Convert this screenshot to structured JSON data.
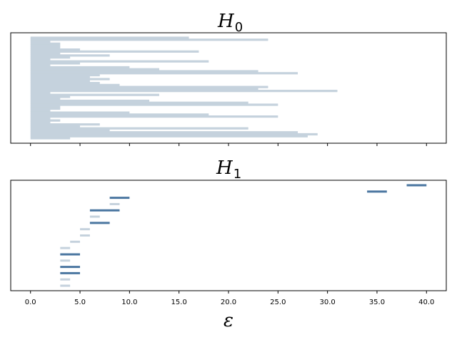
{
  "chart_data": [
    {
      "type": "barcode",
      "title": {
        "main": "H",
        "sub": "0"
      },
      "xlim": [
        -2,
        42
      ],
      "show_xticklabels": false,
      "color": "#c5d2dd",
      "bars": [
        [
          0,
          16
        ],
        [
          0,
          24
        ],
        [
          0,
          2
        ],
        [
          0,
          3
        ],
        [
          0,
          3
        ],
        [
          0,
          3
        ],
        [
          0,
          5
        ],
        [
          0,
          17
        ],
        [
          0,
          3
        ],
        [
          0,
          8
        ],
        [
          0,
          4
        ],
        [
          0,
          2
        ],
        [
          0,
          18
        ],
        [
          0,
          5
        ],
        [
          0,
          2
        ],
        [
          0,
          10
        ],
        [
          0,
          13
        ],
        [
          0,
          23
        ],
        [
          0,
          27
        ],
        [
          0,
          7
        ],
        [
          0,
          6
        ],
        [
          0,
          8
        ],
        [
          0,
          6
        ],
        [
          0,
          7
        ],
        [
          0,
          9
        ],
        [
          0,
          24
        ],
        [
          0,
          23
        ],
        [
          0,
          31
        ],
        [
          0,
          2
        ],
        [
          0,
          13
        ],
        [
          0,
          4
        ],
        [
          0,
          3
        ],
        [
          0,
          12
        ],
        [
          0,
          22
        ],
        [
          0,
          25
        ],
        [
          0,
          3
        ],
        [
          0,
          3
        ],
        [
          0,
          2
        ],
        [
          0,
          10
        ],
        [
          0,
          18
        ],
        [
          0,
          25
        ],
        [
          0,
          2
        ],
        [
          0,
          3
        ],
        [
          0,
          2
        ],
        [
          0,
          7
        ],
        [
          0,
          5
        ],
        [
          0,
          22
        ],
        [
          0,
          8
        ],
        [
          0,
          27
        ],
        [
          0,
          29
        ],
        [
          0,
          28
        ],
        [
          0,
          4
        ]
      ]
    },
    {
      "type": "barcode",
      "title": {
        "main": "H",
        "sub": "1"
      },
      "xlim": [
        -2,
        42
      ],
      "xticks": [
        0,
        5,
        10,
        15,
        20,
        25,
        30,
        35,
        40
      ],
      "xticklabels": [
        "0.0",
        "5.0",
        "10.0",
        "15.0",
        "20.0",
        "25.0",
        "30.0",
        "35.0",
        "40.0"
      ],
      "xlabel": "ε",
      "colors": {
        "dark": "#4a76a0",
        "light": "#c5d2dd"
      },
      "bars": [
        {
          "start": 38,
          "end": 40,
          "tone": "dark"
        },
        {
          "start": 34,
          "end": 36,
          "tone": "dark"
        },
        {
          "start": 8,
          "end": 10,
          "tone": "dark"
        },
        {
          "start": 8,
          "end": 9,
          "tone": "light"
        },
        {
          "start": 6,
          "end": 9,
          "tone": "dark"
        },
        {
          "start": 6,
          "end": 7,
          "tone": "light"
        },
        {
          "start": 6,
          "end": 8,
          "tone": "dark"
        },
        {
          "start": 5,
          "end": 6,
          "tone": "light"
        },
        {
          "start": 5,
          "end": 6,
          "tone": "light"
        },
        {
          "start": 4,
          "end": 5,
          "tone": "light"
        },
        {
          "start": 3,
          "end": 4,
          "tone": "light"
        },
        {
          "start": 3,
          "end": 5,
          "tone": "dark"
        },
        {
          "start": 3,
          "end": 4,
          "tone": "light"
        },
        {
          "start": 3,
          "end": 5,
          "tone": "dark"
        },
        {
          "start": 3,
          "end": 5,
          "tone": "dark"
        },
        {
          "start": 3,
          "end": 4,
          "tone": "light"
        },
        {
          "start": 3,
          "end": 4,
          "tone": "light"
        }
      ]
    }
  ]
}
